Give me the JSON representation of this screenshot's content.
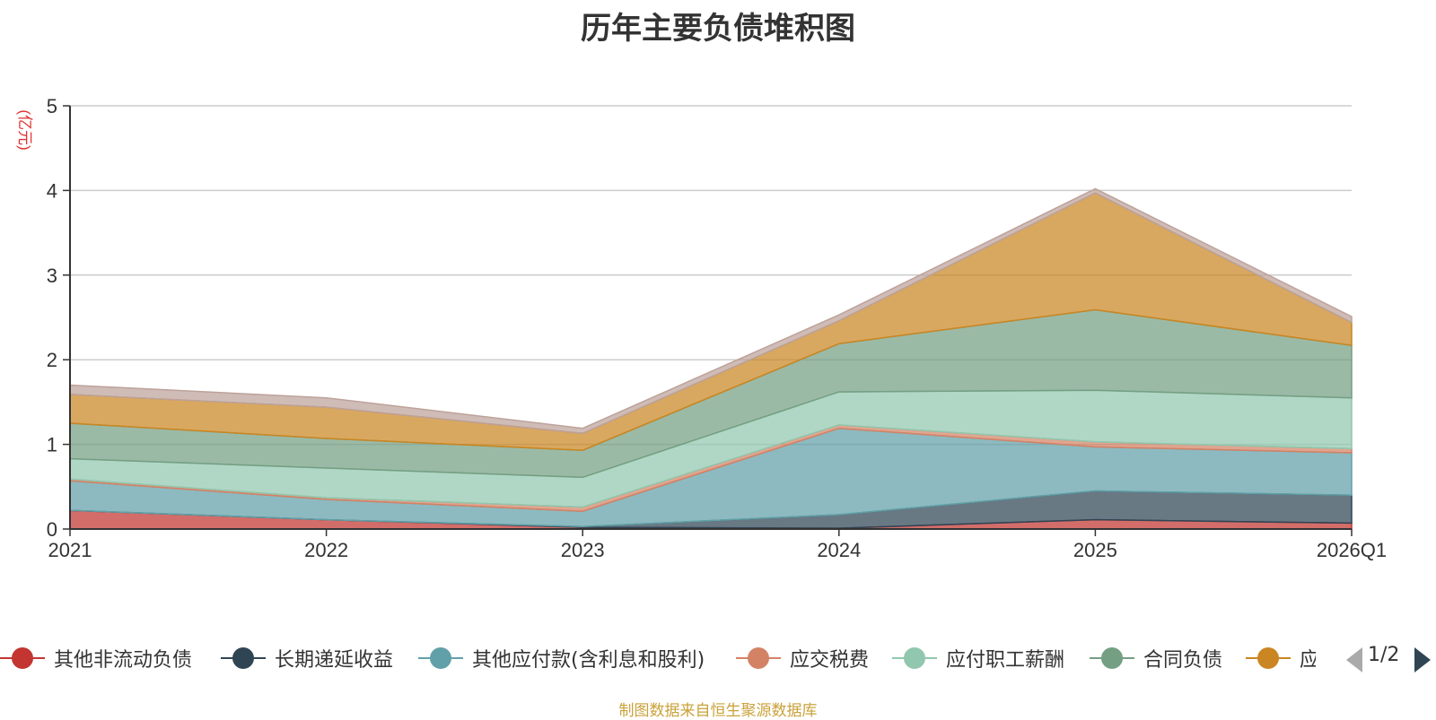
{
  "title": "历年主要负债堆积图",
  "source_note": "制图数据来自恒生聚源数据库",
  "legend_page": "1/2",
  "chart_data": {
    "type": "area",
    "stacked": true,
    "title": "历年主要负债堆积图",
    "ylabel": "(亿元)",
    "xlabel": "",
    "categories": [
      "2021",
      "2022",
      "2023",
      "2024",
      "2025",
      "2026Q1"
    ],
    "ylim": [
      0,
      5
    ],
    "yticks": [
      0,
      1,
      2,
      3,
      4,
      5
    ],
    "grid": true,
    "legend_position": "bottom",
    "series": [
      {
        "name": "其他非流动负债",
        "color": "#c23531",
        "values": [
          0.22,
          0.11,
          0.02,
          0.01,
          0.11,
          0.07
        ]
      },
      {
        "name": "长期递延收益",
        "color": "#2f4554",
        "values": [
          0.0,
          0.0,
          0.01,
          0.16,
          0.34,
          0.33
        ]
      },
      {
        "name": "其他应付款(含利息和股利)",
        "color": "#61a0a8",
        "values": [
          0.35,
          0.24,
          0.18,
          1.02,
          0.52,
          0.5
        ]
      },
      {
        "name": "应交税费",
        "color": "#d48265",
        "values": [
          0.02,
          0.02,
          0.05,
          0.04,
          0.06,
          0.05
        ]
      },
      {
        "name": "应付职工薪酬",
        "color": "#91c7ae",
        "values": [
          0.24,
          0.35,
          0.35,
          0.39,
          0.61,
          0.6
        ]
      },
      {
        "name": "合同负债",
        "color": "#749f83",
        "values": [
          0.42,
          0.35,
          0.32,
          0.57,
          0.95,
          0.62
        ]
      },
      {
        "name": "应付账款",
        "color": "#ca8622",
        "values": [
          0.34,
          0.37,
          0.2,
          0.27,
          1.38,
          0.27
        ]
      },
      {
        "name": "",
        "color": "#bda29a",
        "values": [
          0.11,
          0.11,
          0.06,
          0.07,
          0.05,
          0.07
        ]
      }
    ]
  }
}
